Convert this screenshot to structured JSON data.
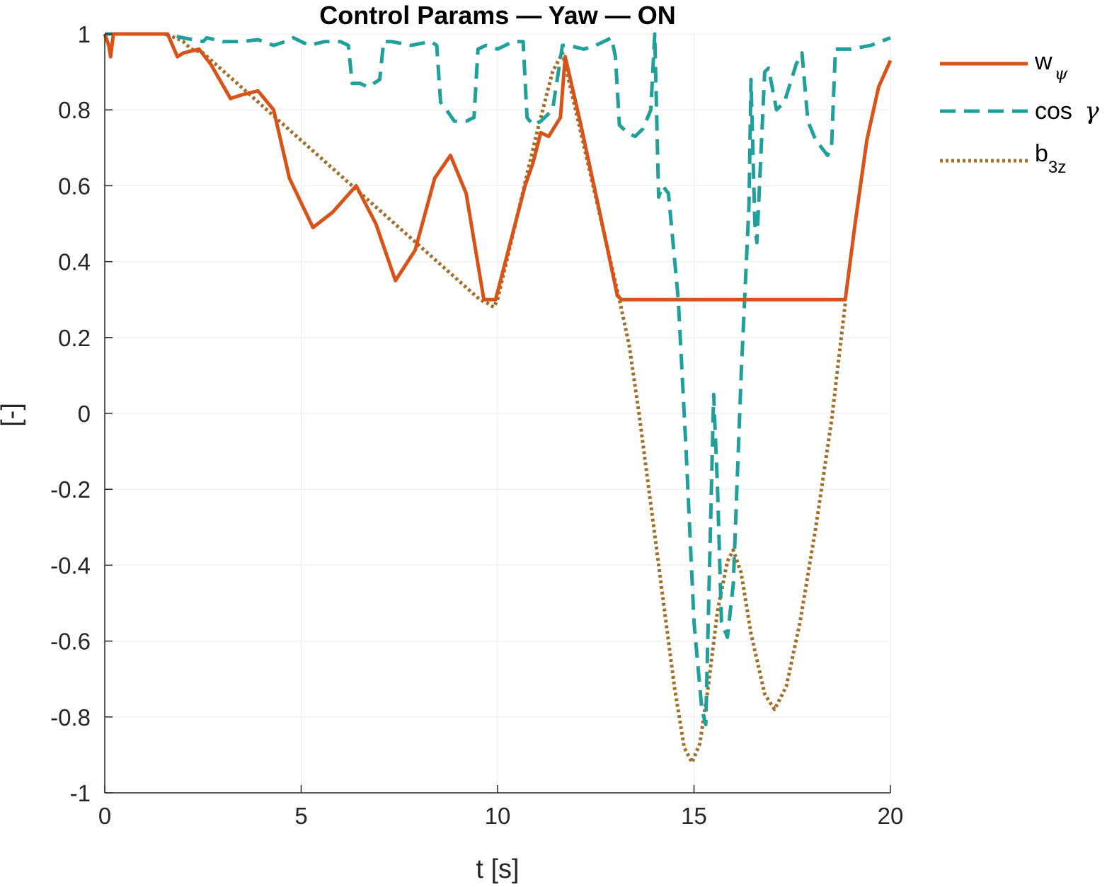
{
  "chart_data": {
    "type": "line",
    "title": "Control Params — Yaw — ON",
    "xlabel": "t [s]",
    "ylabel": "[-]",
    "xlim": [
      0,
      20
    ],
    "ylim": [
      -1,
      1
    ],
    "xticks": [
      0,
      5,
      10,
      15,
      20
    ],
    "yticks": [
      -1,
      -0.8,
      -0.6,
      -0.4,
      -0.2,
      0,
      0.2,
      0.4,
      0.6,
      0.8,
      1
    ],
    "grid": true,
    "legend_position": "outside-top-right",
    "legend": [
      {
        "main": "w",
        "sub": "ψ",
        "sub_style": "greek"
      },
      {
        "main": "cos ",
        "greek": "γ"
      },
      {
        "main": "b",
        "sub": "3z",
        "sub_style": "plain"
      }
    ],
    "series": [
      {
        "key": "w_psi",
        "color": "#d95319",
        "dash": "solid",
        "x": [
          0,
          0.1,
          0.15,
          0.22,
          1.6,
          1.85,
          2.0,
          2.4,
          2.7,
          3.2,
          3.5,
          3.9,
          4.3,
          4.7,
          5.3,
          5.8,
          6.4,
          6.9,
          7.4,
          7.9,
          8.4,
          8.8,
          9.2,
          9.65,
          9.95,
          10.3,
          10.7,
          10.9,
          11.1,
          11.3,
          11.6,
          11.72,
          12.1,
          12.6,
          13.05,
          13.15,
          18.85,
          19.1,
          19.4,
          19.7,
          20.0
        ],
        "y": [
          1,
          0.97,
          0.94,
          1,
          1,
          0.94,
          0.95,
          0.96,
          0.92,
          0.83,
          0.84,
          0.85,
          0.8,
          0.62,
          0.49,
          0.53,
          0.6,
          0.5,
          0.35,
          0.43,
          0.62,
          0.68,
          0.58,
          0.3,
          0.3,
          0.44,
          0.6,
          0.66,
          0.74,
          0.73,
          0.78,
          0.94,
          0.77,
          0.53,
          0.31,
          0.3,
          0.3,
          0.5,
          0.72,
          0.86,
          0.93
        ]
      },
      {
        "key": "cos_gamma",
        "color": "#20a09a",
        "dash": "dashed",
        "x": [
          0,
          1.5,
          2.0,
          2.5,
          2.6,
          3.0,
          3.5,
          3.9,
          4.3,
          4.6,
          4.8,
          5.0,
          5.2,
          5.6,
          6.0,
          6.2,
          6.3,
          6.5,
          6.7,
          7.0,
          7.1,
          7.3,
          7.8,
          8.3,
          8.45,
          8.55,
          8.7,
          8.9,
          9.2,
          9.4,
          9.5,
          9.7,
          10.0,
          10.4,
          10.65,
          10.75,
          10.9,
          11.1,
          11.4,
          11.65,
          11.8,
          12.2,
          12.5,
          12.9,
          13.0,
          13.1,
          13.3,
          13.5,
          13.7,
          13.9,
          14.0,
          14.1,
          14.2,
          14.35,
          14.6,
          14.8,
          15.0,
          15.2,
          15.3,
          15.5,
          15.6,
          15.7,
          15.85,
          16.0,
          16.2,
          16.4,
          16.45,
          16.55,
          16.6,
          16.8,
          16.9,
          17.1,
          17.3,
          17.6,
          17.75,
          17.9,
          18.1,
          18.4,
          18.5,
          18.6,
          19.0,
          19.5,
          20.0
        ],
        "y": [
          1,
          1,
          0.99,
          0.98,
          0.99,
          0.98,
          0.98,
          0.985,
          0.97,
          0.98,
          0.99,
          0.98,
          0.97,
          0.98,
          0.98,
          0.97,
          0.87,
          0.87,
          0.86,
          0.88,
          0.98,
          0.98,
          0.97,
          0.98,
          0.97,
          0.82,
          0.8,
          0.77,
          0.77,
          0.78,
          0.96,
          0.97,
          0.96,
          0.98,
          0.98,
          0.78,
          0.76,
          0.77,
          0.8,
          0.97,
          0.97,
          0.96,
          0.97,
          0.99,
          0.94,
          0.76,
          0.74,
          0.73,
          0.75,
          0.8,
          1.0,
          0.57,
          0.6,
          0.58,
          0.3,
          -0.1,
          -0.55,
          -0.78,
          -0.82,
          0.05,
          -0.2,
          -0.55,
          -0.59,
          -0.45,
          0.1,
          0.55,
          0.88,
          0.5,
          0.45,
          0.9,
          0.91,
          0.8,
          0.82,
          0.92,
          0.95,
          0.77,
          0.72,
          0.68,
          0.7,
          0.96,
          0.96,
          0.97,
          0.99
        ]
      },
      {
        "key": "b3z",
        "color": "#a0702a",
        "dash": "dotted",
        "x": [
          0,
          1.5,
          1.8,
          2.0,
          2.2,
          2.5,
          9.55,
          9.75,
          9.9,
          10.0,
          11.0,
          11.4,
          11.65,
          13.1,
          13.35,
          13.6,
          13.9,
          14.2,
          14.5,
          14.75,
          14.95,
          15.15,
          15.35,
          15.6,
          15.85,
          16.0,
          16.2,
          16.45,
          16.8,
          17.05,
          17.35,
          17.7,
          18.1,
          18.5,
          18.85
        ],
        "y": [
          1,
          1,
          0.99,
          0.98,
          0.96,
          0.95,
          0.3,
          0.29,
          0.28,
          0.3,
          0.74,
          0.9,
          0.95,
          0.3,
          0.18,
          0.0,
          -0.24,
          -0.48,
          -0.72,
          -0.88,
          -0.92,
          -0.87,
          -0.73,
          -0.52,
          -0.39,
          -0.36,
          -0.42,
          -0.58,
          -0.74,
          -0.78,
          -0.72,
          -0.55,
          -0.3,
          -0.02,
          0.29
        ]
      }
    ]
  }
}
